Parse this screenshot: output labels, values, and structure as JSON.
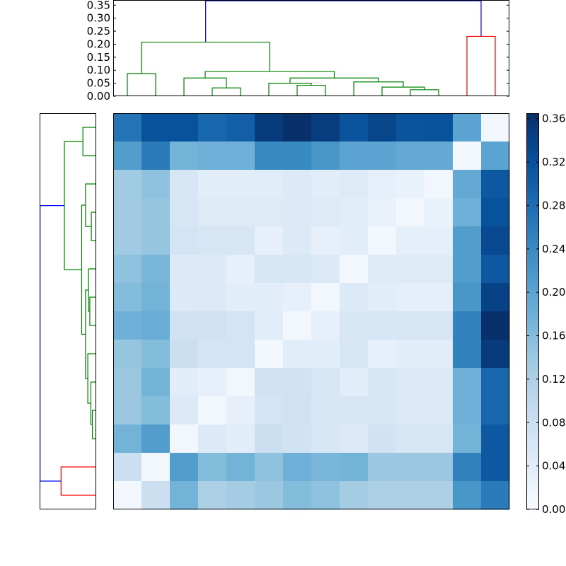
{
  "chart_data": {
    "type": "heatmap",
    "title": "",
    "xlabel": "",
    "ylabel": "",
    "matrix": [
      [
        0.27,
        0.32,
        0.32,
        0.29,
        0.3,
        0.35,
        0.365,
        0.345,
        0.315,
        0.335,
        0.315,
        0.32,
        0.2,
        0.01
      ],
      [
        0.21,
        0.26,
        0.175,
        0.18,
        0.18,
        0.24,
        0.24,
        0.22,
        0.2,
        0.2,
        0.19,
        0.19,
        0.01,
        0.2
      ],
      [
        0.135,
        0.15,
        0.06,
        0.04,
        0.04,
        0.04,
        0.05,
        0.04,
        0.045,
        0.03,
        0.025,
        0.01,
        0.19,
        0.31
      ],
      [
        0.135,
        0.145,
        0.06,
        0.045,
        0.045,
        0.045,
        0.05,
        0.045,
        0.04,
        0.025,
        0.01,
        0.025,
        0.18,
        0.32
      ],
      [
        0.135,
        0.145,
        0.065,
        0.06,
        0.06,
        0.03,
        0.05,
        0.03,
        0.04,
        0.01,
        0.035,
        0.035,
        0.21,
        0.33
      ],
      [
        0.15,
        0.17,
        0.05,
        0.05,
        0.03,
        0.06,
        0.06,
        0.05,
        0.01,
        0.045,
        0.045,
        0.045,
        0.21,
        0.31
      ],
      [
        0.16,
        0.175,
        0.05,
        0.05,
        0.04,
        0.04,
        0.03,
        0.01,
        0.05,
        0.04,
        0.035,
        0.035,
        0.22,
        0.34
      ],
      [
        0.18,
        0.185,
        0.07,
        0.075,
        0.065,
        0.04,
        0.01,
        0.03,
        0.06,
        0.06,
        0.06,
        0.06,
        0.25,
        0.365
      ],
      [
        0.145,
        0.16,
        0.08,
        0.065,
        0.065,
        0.01,
        0.04,
        0.04,
        0.06,
        0.03,
        0.04,
        0.04,
        0.25,
        0.35
      ],
      [
        0.14,
        0.175,
        0.04,
        0.03,
        0.01,
        0.07,
        0.07,
        0.06,
        0.04,
        0.06,
        0.05,
        0.05,
        0.18,
        0.29
      ],
      [
        0.14,
        0.16,
        0.05,
        0.01,
        0.03,
        0.065,
        0.075,
        0.06,
        0.06,
        0.06,
        0.05,
        0.05,
        0.18,
        0.29
      ],
      [
        0.175,
        0.21,
        0.01,
        0.05,
        0.04,
        0.08,
        0.07,
        0.06,
        0.05,
        0.07,
        0.06,
        0.06,
        0.175,
        0.31
      ],
      [
        0.08,
        0.01,
        0.21,
        0.16,
        0.175,
        0.15,
        0.18,
        0.17,
        0.175,
        0.14,
        0.14,
        0.14,
        0.25,
        0.31
      ],
      [
        0.01,
        0.08,
        0.175,
        0.12,
        0.13,
        0.14,
        0.16,
        0.15,
        0.13,
        0.12,
        0.12,
        0.12,
        0.22,
        0.26
      ]
    ],
    "colorbar": {
      "range": [
        0.0,
        0.365
      ],
      "tick_values": [
        0.0,
        0.04,
        0.08,
        0.12,
        0.16,
        0.2,
        0.24,
        0.28,
        0.32,
        0.36
      ],
      "tick_labels": [
        "0.00",
        "0.04",
        "0.08",
        "0.12",
        "0.16",
        "0.20",
        "0.24",
        "0.28",
        "0.32",
        "0.36"
      ],
      "colormap": "Blues",
      "stops": [
        "#f7fbff",
        "#deebf7",
        "#c6dbef",
        "#9ecae1",
        "#6baed6",
        "#4292c6",
        "#2171b5",
        "#08519c",
        "#08306b"
      ]
    },
    "top_dendrogram": {
      "ylim": [
        0,
        0.37
      ],
      "tick_values": [
        0.0,
        0.05,
        0.1,
        0.15,
        0.2,
        0.25,
        0.3,
        0.35
      ],
      "tick_labels": [
        "0.00",
        "0.05",
        "0.10",
        "0.15",
        "0.20",
        "0.25",
        "0.30",
        "0.35"
      ],
      "leaf_count": 14,
      "links": [
        {
          "left": 0,
          "right": 1,
          "height": 0.087,
          "color": "#008000"
        },
        {
          "left": 3,
          "right": 4,
          "height": 0.032,
          "color": "#008000"
        },
        {
          "left": 2,
          "right": "n1",
          "height": 0.07,
          "color": "#008000"
        },
        {
          "left": 6,
          "right": 7,
          "height": 0.042,
          "color": "#008000"
        },
        {
          "left": 5,
          "right": "n3",
          "height": 0.05,
          "color": "#008000"
        },
        {
          "left": 10,
          "right": 11,
          "height": 0.025,
          "color": "#008000"
        },
        {
          "left": 9,
          "right": "n5",
          "height": 0.035,
          "color": "#008000"
        },
        {
          "left": 8,
          "right": "n6",
          "height": 0.055,
          "color": "#008000"
        },
        {
          "left": "n4",
          "right": "n7",
          "height": 0.07,
          "color": "#008000"
        },
        {
          "left": "n2",
          "right": "n8",
          "height": 0.095,
          "color": "#008000"
        },
        {
          "left": "n0",
          "right": "n9",
          "height": 0.208,
          "color": "#008000"
        },
        {
          "left": 12,
          "right": 13,
          "height": 0.23,
          "color": "#ff0000"
        },
        {
          "left": "n10",
          "right": "n11",
          "height": 0.367,
          "color": "#0000ff"
        }
      ]
    },
    "left_dendrogram": {
      "leaf_count": 14,
      "xlim": [
        0,
        0.37
      ],
      "links": [
        {
          "left": 0,
          "right": 1,
          "height": 0.087,
          "color": "#008000"
        },
        {
          "left": 3,
          "right": 4,
          "height": 0.032,
          "color": "#008000"
        },
        {
          "left": 2,
          "right": "n1",
          "height": 0.07,
          "color": "#008000"
        },
        {
          "left": 6,
          "right": 7,
          "height": 0.042,
          "color": "#008000"
        },
        {
          "left": 5,
          "right": "n3",
          "height": 0.05,
          "color": "#008000"
        },
        {
          "left": 10,
          "right": 11,
          "height": 0.025,
          "color": "#008000"
        },
        {
          "left": 9,
          "right": "n5",
          "height": 0.035,
          "color": "#008000"
        },
        {
          "left": 8,
          "right": "n6",
          "height": 0.055,
          "color": "#008000"
        },
        {
          "left": "n4",
          "right": "n7",
          "height": 0.07,
          "color": "#008000"
        },
        {
          "left": "n2",
          "right": "n8",
          "height": 0.095,
          "color": "#008000"
        },
        {
          "left": "n0",
          "right": "n9",
          "height": 0.208,
          "color": "#008000"
        },
        {
          "left": 12,
          "right": 13,
          "height": 0.23,
          "color": "#ff0000"
        },
        {
          "left": "n10",
          "right": "n11",
          "height": 0.367,
          "color": "#0000ff"
        }
      ]
    }
  }
}
